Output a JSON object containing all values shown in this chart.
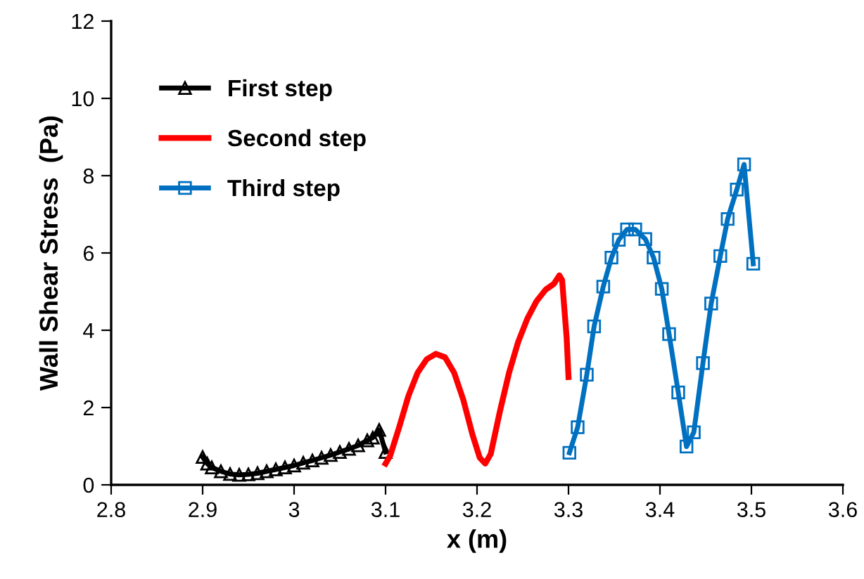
{
  "chart_data": {
    "type": "line",
    "xlabel": "x (m)",
    "ylabel": "Wall Shear Stress  (Pa)",
    "xlim": [
      2.8,
      3.6
    ],
    "ylim": [
      0,
      12
    ],
    "xticks": [
      2.8,
      2.9,
      3,
      3.1,
      3.2,
      3.3,
      3.4,
      3.5,
      3.6
    ],
    "yticks": [
      0,
      2,
      4,
      6,
      8,
      10,
      12
    ],
    "grid": false,
    "legend": "top left",
    "series": [
      {
        "name": "First step",
        "color": "#000000",
        "marker": "triangle",
        "x": [
          2.9,
          2.905,
          2.91,
          2.92,
          2.93,
          2.94,
          2.95,
          2.96,
          2.97,
          2.98,
          2.99,
          3.0,
          3.01,
          3.02,
          3.03,
          3.04,
          3.05,
          3.06,
          3.07,
          3.08,
          3.086,
          3.093,
          3.1
        ],
        "values": [
          0.72,
          0.55,
          0.45,
          0.35,
          0.28,
          0.26,
          0.27,
          0.3,
          0.35,
          0.4,
          0.45,
          0.5,
          0.57,
          0.63,
          0.7,
          0.77,
          0.85,
          0.93,
          1.02,
          1.15,
          1.22,
          1.42,
          0.85
        ]
      },
      {
        "name": "Second step",
        "color": "#ff0000",
        "marker": "none",
        "x": [
          3.1,
          3.105,
          3.115,
          3.125,
          3.135,
          3.145,
          3.155,
          3.165,
          3.175,
          3.185,
          3.195,
          3.203,
          3.209,
          3.215,
          3.225,
          3.235,
          3.245,
          3.255,
          3.265,
          3.275,
          3.284,
          3.29,
          3.293,
          3.298,
          3.3
        ],
        "values": [
          0.55,
          0.75,
          1.5,
          2.3,
          2.9,
          3.25,
          3.39,
          3.3,
          2.9,
          2.2,
          1.3,
          0.7,
          0.55,
          0.8,
          1.9,
          2.9,
          3.7,
          4.3,
          4.75,
          5.05,
          5.2,
          5.42,
          5.3,
          3.8,
          2.79
        ]
      },
      {
        "name": "Third step",
        "color": "#0070c0",
        "marker": "square",
        "x": [
          3.301,
          3.31,
          3.32,
          3.328,
          3.338,
          3.347,
          3.355,
          3.364,
          3.373,
          3.384,
          3.393,
          3.402,
          3.41,
          3.42,
          3.429,
          3.437,
          3.447,
          3.456,
          3.466,
          3.474,
          3.484,
          3.492,
          3.502
        ],
        "values": [
          0.83,
          1.49,
          2.85,
          4.1,
          5.13,
          5.88,
          6.34,
          6.61,
          6.61,
          6.36,
          5.88,
          5.07,
          3.9,
          2.39,
          0.99,
          1.36,
          3.15,
          4.69,
          5.92,
          6.88,
          7.64,
          8.29,
          5.72
        ]
      }
    ]
  }
}
